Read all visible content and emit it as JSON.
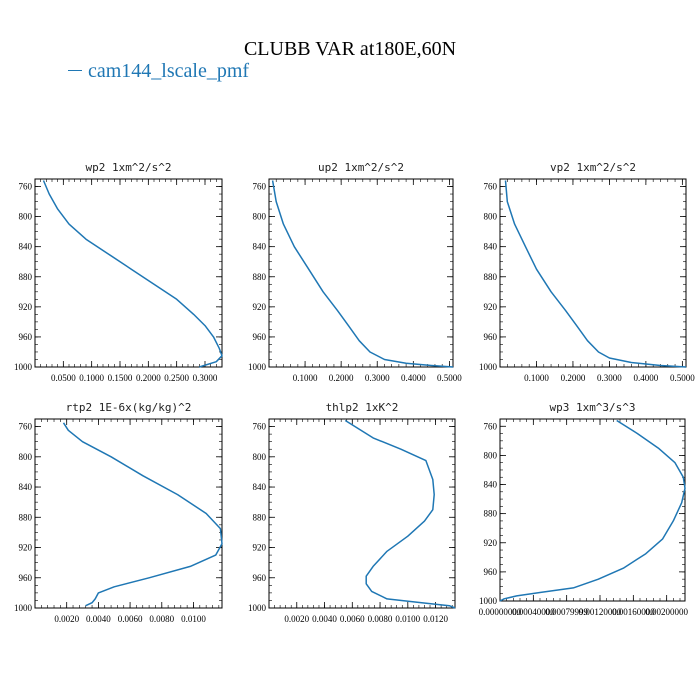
{
  "title": "CLUBB VAR at180E,60N",
  "legend": {
    "label": "cam144_lscale_pmf",
    "color": "#1f77b4"
  },
  "chart_data": [
    {
      "type": "line",
      "title": "wp2   1xm^2/s^2",
      "xlim": [
        0.0,
        0.33
      ],
      "ylim": [
        1000,
        750
      ],
      "xticks": [
        0.05,
        0.1,
        0.15,
        0.2,
        0.25,
        0.3
      ],
      "xtick_labels": [
        "0.0500",
        "0.1000",
        "0.1500",
        "0.2000",
        "0.2500",
        "0.3000"
      ],
      "yticks": [
        760,
        800,
        840,
        880,
        920,
        960,
        1000
      ],
      "series": [
        {
          "color": "#1f77b4",
          "x": [
            0.015,
            0.025,
            0.04,
            0.06,
            0.09,
            0.13,
            0.17,
            0.21,
            0.25,
            0.28,
            0.3,
            0.315,
            0.325,
            0.33,
            0.32,
            0.29
          ],
          "y": [
            752,
            770,
            790,
            810,
            830,
            850,
            870,
            890,
            910,
            930,
            945,
            960,
            975,
            985,
            993,
            1000
          ]
        }
      ]
    },
    {
      "type": "line",
      "title": "up2   1xm^2/s^2",
      "xlim": [
        0.0,
        0.51
      ],
      "ylim": [
        1000,
        750
      ],
      "xticks": [
        0.1,
        0.2,
        0.3,
        0.4,
        0.5
      ],
      "xtick_labels": [
        "0.1000",
        "0.2000",
        "0.3000",
        "0.4000",
        "0.5000"
      ],
      "yticks": [
        760,
        800,
        840,
        880,
        920,
        960,
        1000
      ],
      "series": [
        {
          "color": "#1f77b4",
          "x": [
            0.01,
            0.02,
            0.04,
            0.07,
            0.11,
            0.15,
            0.19,
            0.22,
            0.25,
            0.28,
            0.32,
            0.38,
            0.45,
            0.51
          ],
          "y": [
            752,
            780,
            810,
            840,
            870,
            900,
            925,
            945,
            965,
            980,
            990,
            995,
            998,
            1000
          ]
        }
      ]
    },
    {
      "type": "line",
      "title": "vp2   1xm^2/s^2",
      "xlim": [
        0.0,
        0.51
      ],
      "ylim": [
        1000,
        750
      ],
      "xticks": [
        0.1,
        0.2,
        0.3,
        0.4,
        0.5
      ],
      "xtick_labels": [
        "0.1000",
        "0.2000",
        "0.3000",
        "0.4000",
        "0.5000"
      ],
      "yticks": [
        760,
        800,
        840,
        880,
        920,
        960,
        1000
      ],
      "series": [
        {
          "color": "#1f77b4",
          "x": [
            0.015,
            0.02,
            0.04,
            0.07,
            0.1,
            0.14,
            0.18,
            0.21,
            0.24,
            0.27,
            0.3,
            0.36,
            0.44,
            0.51
          ],
          "y": [
            752,
            780,
            810,
            840,
            870,
            900,
            925,
            945,
            965,
            980,
            988,
            994,
            998,
            1000
          ]
        }
      ]
    },
    {
      "type": "line",
      "title": "rtp2   1E-6x(kg/kg)^2",
      "xlim": [
        0.0,
        0.0118
      ],
      "ylim": [
        1000,
        750
      ],
      "xticks": [
        0.002,
        0.004,
        0.006,
        0.008,
        0.01
      ],
      "xtick_labels": [
        "0.0020",
        "0.0040",
        "0.0060",
        "0.0080",
        "0.0100"
      ],
      "yticks": [
        760,
        800,
        840,
        880,
        920,
        960,
        1000
      ],
      "series": [
        {
          "color": "#1f77b4",
          "x": [
            0.0018,
            0.0021,
            0.003,
            0.0048,
            0.0068,
            0.009,
            0.0108,
            0.0117,
            0.0118,
            0.0114,
            0.0098,
            0.0072,
            0.005,
            0.004,
            0.0038,
            0.0036,
            0.0032
          ],
          "y": [
            755,
            765,
            780,
            800,
            825,
            850,
            875,
            895,
            915,
            930,
            945,
            960,
            972,
            980,
            988,
            993,
            997
          ]
        }
      ]
    },
    {
      "type": "line",
      "title": "thlp2   1xK^2",
      "xlim": [
        0.0,
        0.0134
      ],
      "ylim": [
        1000,
        750
      ],
      "xticks": [
        0.002,
        0.004,
        0.006,
        0.008,
        0.01,
        0.012
      ],
      "xtick_labels": [
        "0.0020",
        "0.0040",
        "0.0060",
        "0.0080",
        "0.0100",
        "0.0120"
      ],
      "yticks": [
        760,
        800,
        840,
        880,
        920,
        960,
        1000
      ],
      "series": [
        {
          "color": "#1f77b4",
          "x": [
            0.0055,
            0.0075,
            0.0095,
            0.0113,
            0.0118,
            0.0119,
            0.0118,
            0.0112,
            0.01,
            0.0085,
            0.0075,
            0.007,
            0.007,
            0.0074,
            0.0085,
            0.011,
            0.013,
            0.0134
          ],
          "y": [
            752,
            775,
            790,
            805,
            830,
            850,
            870,
            885,
            905,
            925,
            945,
            958,
            968,
            978,
            988,
            993,
            997,
            1000
          ]
        }
      ]
    },
    {
      "type": "line",
      "title": "wp3   1xm^3/s^3",
      "xlim": [
        0.0,
        0.00222
      ],
      "ylim": [
        1000,
        750
      ],
      "xticks": [
        0.0,
        0.0004,
        0.0008,
        0.0012,
        0.0016,
        0.002
      ],
      "xtick_labels": [
        "0.00000000",
        "0.00040000",
        "0.00079999",
        "0.00120000",
        "0.00160000",
        "0.00200000"
      ],
      "yticks": [
        760,
        800,
        840,
        880,
        920,
        960,
        1000
      ],
      "series": [
        {
          "color": "#1f77b4",
          "x": [
            0.0014,
            0.00165,
            0.0019,
            0.0021,
            0.0022,
            0.00222,
            0.00218,
            0.00208,
            0.00195,
            0.00175,
            0.00148,
            0.00118,
            0.00088,
            0.0005,
            0.0002,
            5e-05,
            0.0
          ],
          "y": [
            752,
            770,
            790,
            810,
            830,
            845,
            865,
            890,
            915,
            935,
            955,
            970,
            982,
            988,
            993,
            997,
            1000
          ]
        }
      ]
    }
  ]
}
